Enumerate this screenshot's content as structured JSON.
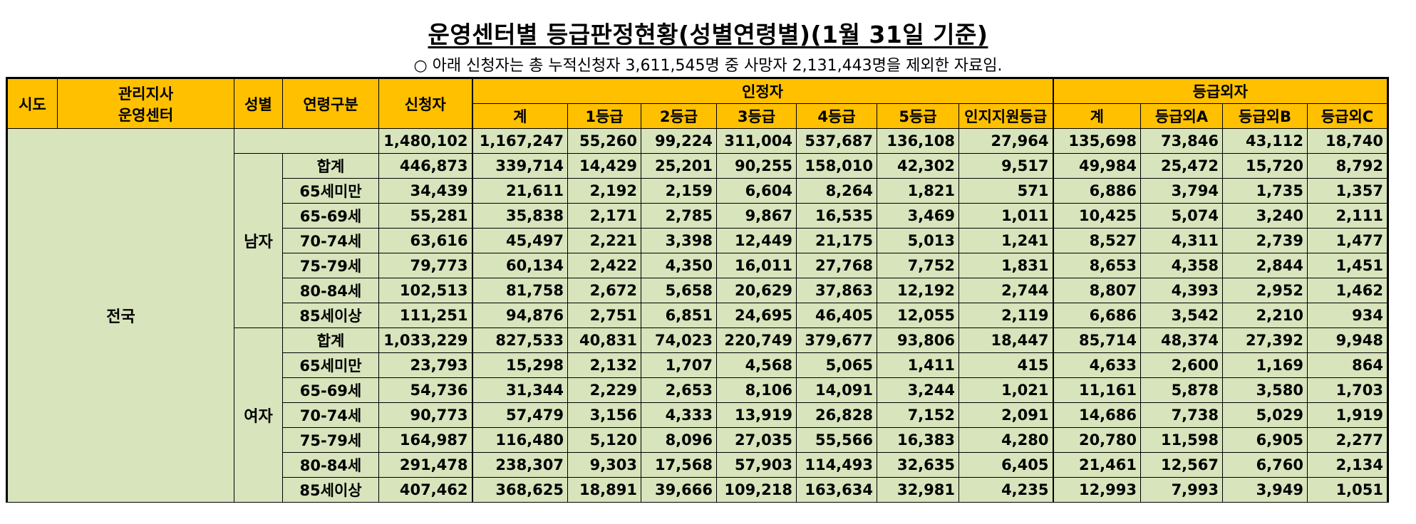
{
  "title": "운영센터별 등급판정현황(성별연령별)(1월 31일 기준)",
  "note": "○ 아래 신청자는 총 누적신청자 3,611,545명 중 사망자 2,131,443명을 제외한 자료임.",
  "header": {
    "sido": "시도",
    "branch_line1": "관리지사",
    "branch_line2": "운영센터",
    "sex": "성별",
    "age_group": "연령구분",
    "applicants": "신청자",
    "certified": "인정자",
    "excluded": "등급외자",
    "certified_cols": [
      "계",
      "1등급",
      "2등급",
      "3등급",
      "4등급",
      "5등급",
      "인지지원등급"
    ],
    "excluded_cols": [
      "계",
      "등급외A",
      "등급외B",
      "등급외C"
    ]
  },
  "region": "전국",
  "total": [
    "1,480,102",
    "1,167,247",
    "55,260",
    "99,224",
    "311,004",
    "537,687",
    "136,108",
    "27,964",
    "135,698",
    "73,846",
    "43,112",
    "18,740"
  ],
  "groups": [
    {
      "sex": "남자",
      "rows": [
        {
          "age": "합계",
          "v": [
            "446,873",
            "339,714",
            "14,429",
            "25,201",
            "90,255",
            "158,010",
            "42,302",
            "9,517",
            "49,984",
            "25,472",
            "15,720",
            "8,792"
          ]
        },
        {
          "age": "65세미만",
          "v": [
            "34,439",
            "21,611",
            "2,192",
            "2,159",
            "6,604",
            "8,264",
            "1,821",
            "571",
            "6,886",
            "3,794",
            "1,735",
            "1,357"
          ]
        },
        {
          "age": "65-69세",
          "v": [
            "55,281",
            "35,838",
            "2,171",
            "2,785",
            "9,867",
            "16,535",
            "3,469",
            "1,011",
            "10,425",
            "5,074",
            "3,240",
            "2,111"
          ]
        },
        {
          "age": "70-74세",
          "v": [
            "63,616",
            "45,497",
            "2,221",
            "3,398",
            "12,449",
            "21,175",
            "5,013",
            "1,241",
            "8,527",
            "4,311",
            "2,739",
            "1,477"
          ]
        },
        {
          "age": "75-79세",
          "v": [
            "79,773",
            "60,134",
            "2,422",
            "4,350",
            "16,011",
            "27,768",
            "7,752",
            "1,831",
            "8,653",
            "4,358",
            "2,844",
            "1,451"
          ]
        },
        {
          "age": "80-84세",
          "v": [
            "102,513",
            "81,758",
            "2,672",
            "5,658",
            "20,629",
            "37,863",
            "12,192",
            "2,744",
            "8,807",
            "4,393",
            "2,952",
            "1,462"
          ]
        },
        {
          "age": "85세이상",
          "v": [
            "111,251",
            "94,876",
            "2,751",
            "6,851",
            "24,695",
            "46,405",
            "12,055",
            "2,119",
            "6,686",
            "3,542",
            "2,210",
            "934"
          ]
        }
      ]
    },
    {
      "sex": "여자",
      "rows": [
        {
          "age": "합계",
          "v": [
            "1,033,229",
            "827,533",
            "40,831",
            "74,023",
            "220,749",
            "379,677",
            "93,806",
            "18,447",
            "85,714",
            "48,374",
            "27,392",
            "9,948"
          ]
        },
        {
          "age": "65세미만",
          "v": [
            "23,793",
            "15,298",
            "2,132",
            "1,707",
            "4,568",
            "5,065",
            "1,411",
            "415",
            "4,633",
            "2,600",
            "1,169",
            "864"
          ]
        },
        {
          "age": "65-69세",
          "v": [
            "54,736",
            "31,344",
            "2,229",
            "2,653",
            "8,106",
            "14,091",
            "3,244",
            "1,021",
            "11,161",
            "5,878",
            "3,580",
            "1,703"
          ]
        },
        {
          "age": "70-74세",
          "v": [
            "90,773",
            "57,479",
            "3,156",
            "4,333",
            "13,919",
            "26,828",
            "7,152",
            "2,091",
            "14,686",
            "7,738",
            "5,029",
            "1,919"
          ]
        },
        {
          "age": "75-79세",
          "v": [
            "164,987",
            "116,480",
            "5,120",
            "8,096",
            "27,035",
            "55,566",
            "16,383",
            "4,280",
            "20,780",
            "11,598",
            "6,905",
            "2,277"
          ]
        },
        {
          "age": "80-84세",
          "v": [
            "291,478",
            "238,307",
            "9,303",
            "17,568",
            "57,903",
            "114,493",
            "32,635",
            "6,405",
            "21,461",
            "12,567",
            "6,760",
            "2,134"
          ]
        },
        {
          "age": "85세이상",
          "v": [
            "407,462",
            "368,625",
            "18,891",
            "39,666",
            "109,218",
            "163,634",
            "32,981",
            "4,235",
            "12,993",
            "7,993",
            "3,949",
            "1,051"
          ]
        }
      ]
    }
  ]
}
